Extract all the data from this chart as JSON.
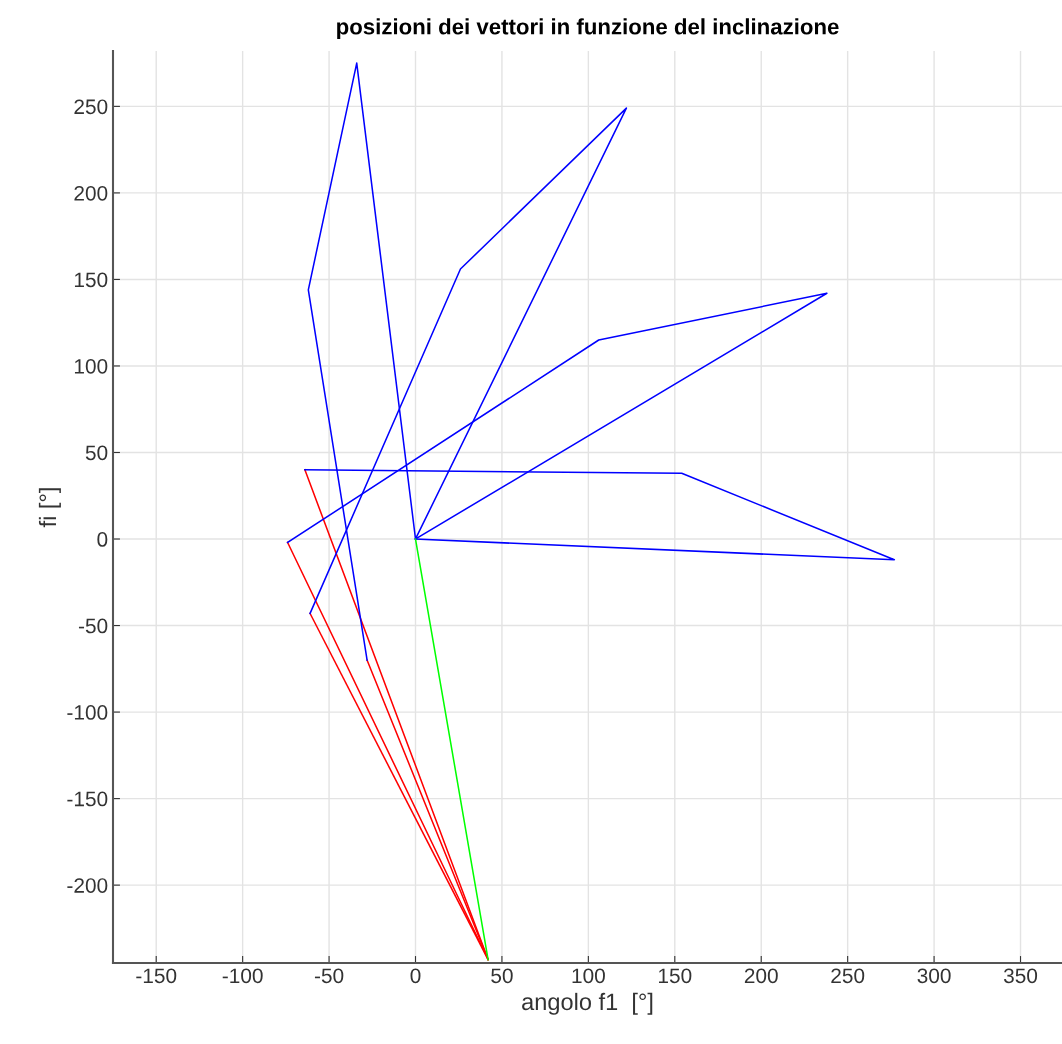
{
  "chart_data": {
    "type": "line",
    "title": "posizioni dei vettori in funzione del inclinazione",
    "xlabel": "angolo f1  [°]",
    "ylabel": "fi [°]",
    "xlim": [
      -175,
      374
    ],
    "ylim": [
      -245,
      282
    ],
    "xticks": [
      -150,
      -100,
      -50,
      0,
      50,
      100,
      150,
      200,
      250,
      300,
      350
    ],
    "yticks": [
      -200,
      -150,
      -100,
      -50,
      0,
      50,
      100,
      150,
      200,
      250
    ],
    "grid": true,
    "marker": "none",
    "line_style": "solid",
    "series": [
      {
        "color": "#ff0000",
        "x": [
          42,
          -64
        ],
        "values": [
          -243,
          40
        ]
      },
      {
        "color": "#ff0000",
        "x": [
          42,
          -74
        ],
        "values": [
          -243,
          -2
        ]
      },
      {
        "color": "#ff0000",
        "x": [
          42,
          -61
        ],
        "values": [
          -243,
          -43
        ]
      },
      {
        "color": "#ff0000",
        "x": [
          42,
          -28
        ],
        "values": [
          -243,
          -70
        ]
      },
      {
        "color": "#0000ff",
        "x": [
          -64,
          154,
          277,
          0
        ],
        "values": [
          40,
          38,
          -12,
          0
        ]
      },
      {
        "color": "#0000ff",
        "x": [
          -74,
          106,
          238,
          0
        ],
        "values": [
          -2,
          115,
          142,
          0
        ]
      },
      {
        "color": "#0000ff",
        "x": [
          -61,
          26,
          122,
          0
        ],
        "values": [
          -43,
          156,
          249,
          0
        ]
      },
      {
        "color": "#0000ff",
        "x": [
          -28,
          -62,
          -34,
          0
        ],
        "values": [
          -70,
          144,
          275,
          0
        ]
      },
      {
        "color": "#00ff00",
        "x": [
          0,
          42
        ],
        "values": [
          0,
          -243
        ]
      }
    ]
  }
}
